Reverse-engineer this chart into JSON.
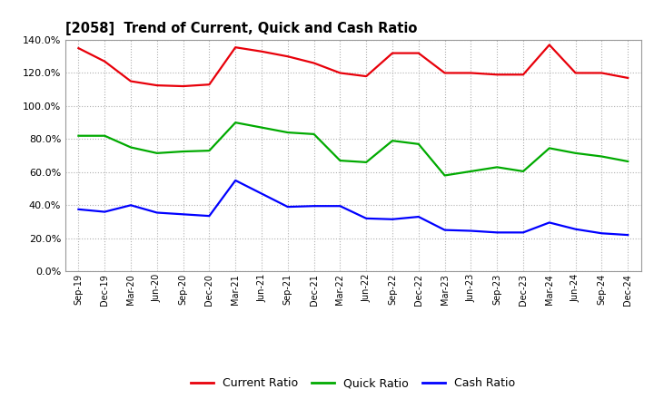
{
  "title": "[2058]  Trend of Current, Quick and Cash Ratio",
  "x_labels": [
    "Sep-19",
    "Dec-19",
    "Mar-20",
    "Jun-20",
    "Sep-20",
    "Dec-20",
    "Mar-21",
    "Jun-21",
    "Sep-21",
    "Dec-21",
    "Mar-22",
    "Jun-22",
    "Sep-22",
    "Dec-22",
    "Mar-23",
    "Jun-23",
    "Sep-23",
    "Dec-23",
    "Mar-24",
    "Jun-24",
    "Sep-24",
    "Dec-24"
  ],
  "current_ratio": [
    135.0,
    127.0,
    115.0,
    112.5,
    112.0,
    113.0,
    135.5,
    133.0,
    130.0,
    126.0,
    120.0,
    118.0,
    132.0,
    132.0,
    120.0,
    120.0,
    119.0,
    119.0,
    137.0,
    120.0,
    120.0,
    117.0
  ],
  "quick_ratio": [
    82.0,
    82.0,
    75.0,
    71.5,
    72.5,
    73.0,
    90.0,
    87.0,
    84.0,
    83.0,
    67.0,
    66.0,
    79.0,
    77.0,
    58.0,
    60.5,
    63.0,
    60.5,
    74.5,
    71.5,
    69.5,
    66.5
  ],
  "cash_ratio": [
    37.5,
    36.0,
    40.0,
    35.5,
    34.5,
    33.5,
    55.0,
    47.0,
    39.0,
    39.5,
    39.5,
    32.0,
    31.5,
    33.0,
    25.0,
    24.5,
    23.5,
    23.5,
    29.5,
    25.5,
    23.0,
    22.0
  ],
  "current_color": "#e8000a",
  "quick_color": "#00aa00",
  "cash_color": "#0000ff",
  "ylim": [
    0,
    140
  ],
  "yticks": [
    0,
    20,
    40,
    60,
    80,
    100,
    120,
    140
  ],
  "background_color": "#ffffff",
  "grid_color": "#b0b0b0",
  "legend_labels": [
    "Current Ratio",
    "Quick Ratio",
    "Cash Ratio"
  ]
}
